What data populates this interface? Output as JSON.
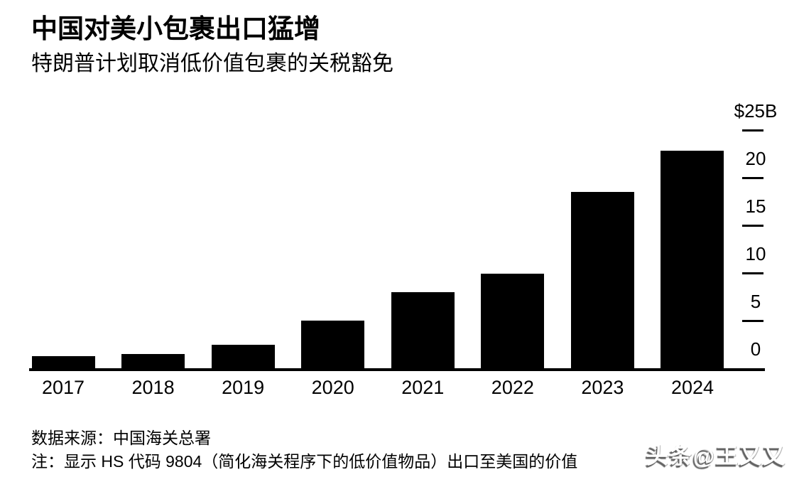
{
  "header": {
    "title": "中国对美小包裹出口猛增",
    "subtitle": "特朗普计划取消低价值包裹的关税豁免"
  },
  "chart_data": {
    "type": "bar",
    "categories": [
      "2017",
      "2018",
      "2019",
      "2020",
      "2021",
      "2022",
      "2023",
      "2024"
    ],
    "values": [
      1.3,
      1.5,
      2.5,
      5.0,
      8.0,
      9.9,
      18.5,
      22.8
    ],
    "unit": "billions of US dollars",
    "ylim": [
      0,
      25
    ],
    "yticks": [
      {
        "value": 0,
        "label": "0"
      },
      {
        "value": 5,
        "label": "5"
      },
      {
        "value": 10,
        "label": "10"
      },
      {
        "value": 15,
        "label": "15"
      },
      {
        "value": 20,
        "label": "20"
      },
      {
        "value": 25,
        "label": "$25B"
      }
    ],
    "axis_side": "right",
    "grid": false,
    "bar_color": "#000000",
    "background_color": "#ffffff",
    "text_color": "#000000"
  },
  "footer": {
    "source": "数据来源：中国海关总署",
    "note": "注：显示 HS 代码 9804（简化海关程序下的低价值物品）出口至美国的价值"
  },
  "watermark": {
    "text": "头条@王又又"
  }
}
